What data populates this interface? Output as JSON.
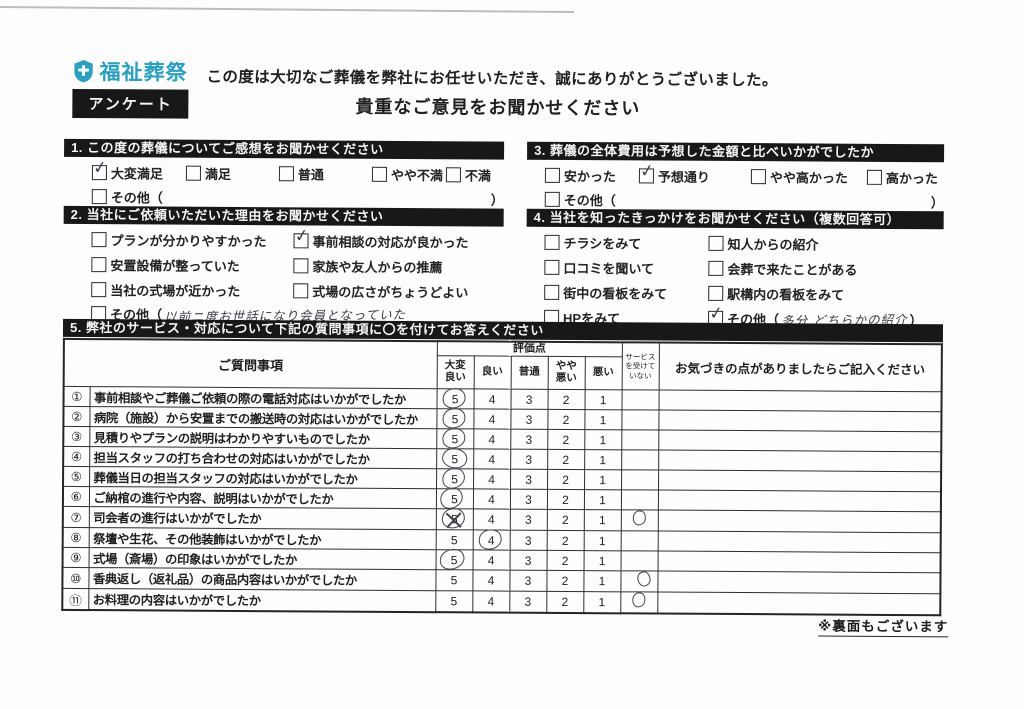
{
  "colors": {
    "brand": "#2b9fbd",
    "bar": "#181818",
    "hand": "#3b3c45",
    "ink": "#1f1f1f"
  },
  "brand": {
    "name": "福祉葬祭"
  },
  "header": {
    "tab": "アンケート",
    "thanks": "この度は大切なご葬儀を弊社にお任せいただき、誠にありがとうございました。",
    "subtitle": "貴重なご意見をお聞かせください"
  },
  "q1": {
    "title": "1. この度の葬儀についてご感想をお聞かせください",
    "options": [
      {
        "label": "大変満足",
        "checked": true
      },
      {
        "label": "満足",
        "checked": false
      },
      {
        "label": "普通",
        "checked": false
      },
      {
        "label": "やや不満",
        "checked": false
      },
      {
        "label": "不満",
        "checked": false
      }
    ],
    "other": {
      "label": "その他",
      "open": "（",
      "note": "",
      "close": "）",
      "checked": false
    }
  },
  "q2": {
    "title": "2. 当社にご依頼いただいた理由をお聞かせください",
    "options": [
      {
        "label": "プランが分かりやすかった",
        "checked": false
      },
      {
        "label": "事前相談の対応が良かった",
        "checked": true
      },
      {
        "label": "安置設備が整っていた",
        "checked": false
      },
      {
        "label": "家族や友人からの推薦",
        "checked": false
      },
      {
        "label": "当社の式場が近かった",
        "checked": false
      },
      {
        "label": "式場の広さがちょうどよい",
        "checked": false
      }
    ],
    "other": {
      "label": "その他",
      "open": "（",
      "note": "以前ニ度お世話になり会員となっていた",
      "close": "",
      "checked": false
    }
  },
  "q3": {
    "title": "3. 葬儀の全体費用は予想した金額と比べいかがでしたか",
    "options": [
      {
        "label": "安かった",
        "checked": false
      },
      {
        "label": "予想通り",
        "checked": true
      },
      {
        "label": "やや高かった",
        "checked": false
      },
      {
        "label": "高かった",
        "checked": false
      }
    ],
    "other": {
      "label": "その他",
      "open": "（",
      "note": "",
      "close": "）",
      "checked": false
    }
  },
  "q4": {
    "title": "4. 当社を知ったきっかけをお聞かせください（複数回答可）",
    "options": [
      {
        "label": "チラシをみて",
        "checked": false
      },
      {
        "label": "知人からの紹介",
        "checked": false
      },
      {
        "label": "口コミを聞いて",
        "checked": false
      },
      {
        "label": "会葬で来たことがある",
        "checked": false
      },
      {
        "label": "街中の看板をみて",
        "checked": false
      },
      {
        "label": "駅構内の看板をみて",
        "checked": false
      },
      {
        "label": "HPをみて",
        "checked": false
      },
      {
        "label": "その他",
        "open": "（",
        "note": "多分 どちらかの紹介",
        "close": "）",
        "checked": true
      }
    ]
  },
  "q5": {
    "title": "5. 弊社のサービス・対応について下記の質問事項に〇を付けてお答えください",
    "table": {
      "question_header": "ご質問事項",
      "score_group_header": "評価点",
      "score_headers": [
        "大変\n良い",
        "良い",
        "普通",
        "やや\n悪い",
        "悪い"
      ],
      "service_header": "サービス\nを受けて\nいない",
      "comment_header": "お気づきの点がありましたらご記入ください",
      "score_values": [
        5,
        4,
        3,
        2,
        1
      ],
      "rows": [
        {
          "no": "①",
          "question": "事前相談やご葬儀ご依頼の際の電話対応はいかがでしたか",
          "selected": 5,
          "mark": "circle",
          "service": false,
          "comment": ""
        },
        {
          "no": "②",
          "question": "病院（施設）から安置までの搬送時の対応はいかがでしたか",
          "selected": 5,
          "mark": "circle",
          "service": false,
          "comment": ""
        },
        {
          "no": "③",
          "question": "見積りやプランの説明はわかりやすいものでしたか",
          "selected": 5,
          "mark": "circle",
          "service": false,
          "comment": ""
        },
        {
          "no": "④",
          "question": "担当スタッフの打ち合わせの対応はいかがでしたか",
          "selected": 5,
          "mark": "circle",
          "service": false,
          "comment": ""
        },
        {
          "no": "⑤",
          "question": "葬儀当日の担当スタッフの対応はいかがでしたか",
          "selected": 5,
          "mark": "circle",
          "service": false,
          "comment": ""
        },
        {
          "no": "⑥",
          "question": "ご納棺の進行や内容、説明はいかがでしたか",
          "selected": 5,
          "mark": "circle",
          "service": false,
          "comment": ""
        },
        {
          "no": "⑦",
          "question": "司会者の進行はいかがでしたか",
          "selected": 5,
          "mark": "circle-crossed",
          "service": true,
          "comment": ""
        },
        {
          "no": "⑧",
          "question": "祭壇や生花、その他装飾はいかがでしたか",
          "selected": 4,
          "mark": "circle",
          "service": false,
          "comment": ""
        },
        {
          "no": "⑨",
          "question": "式場（斎場）の印象はいかがでしたか",
          "selected": 5,
          "mark": "circle",
          "service": false,
          "comment": ""
        },
        {
          "no": "⑩",
          "question": "香典返し（返礼品）の商品内容はいかがでしたか",
          "selected": null,
          "mark": "none",
          "service": true,
          "comment": ""
        },
        {
          "no": "⑪",
          "question": "お料理の内容はいかがでしたか",
          "selected": null,
          "mark": "none",
          "service": true,
          "comment": ""
        }
      ]
    }
  },
  "footer": {
    "back_note": "※裏面もございます"
  }
}
